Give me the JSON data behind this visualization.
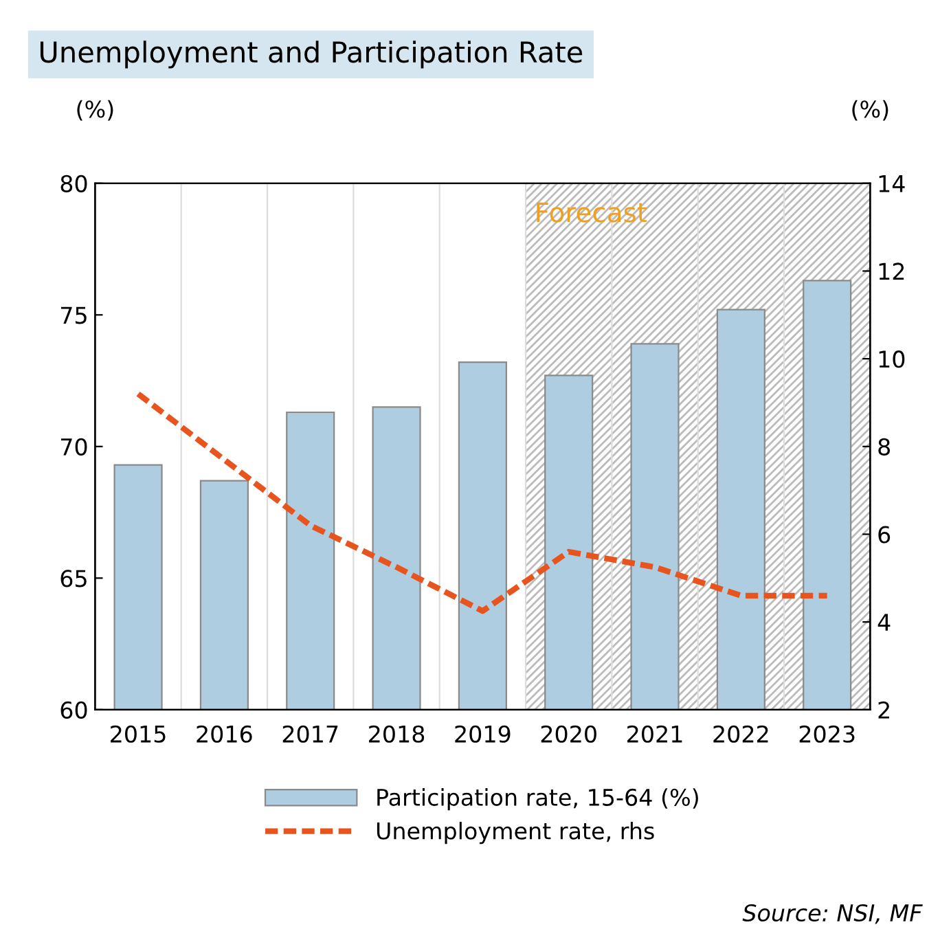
{
  "chart_data": {
    "type": "bar",
    "title": "Unemployment and Participation Rate",
    "ylabel": "(%)",
    "y2label": "(%)",
    "categories": [
      "2015",
      "2016",
      "2017",
      "2018",
      "2019",
      "2020",
      "2021",
      "2022",
      "2023"
    ],
    "series": [
      {
        "name": "Participation rate, 15-64 (%)",
        "color": "#afcde0",
        "values": [
          69.3,
          68.7,
          71.3,
          71.5,
          73.2,
          72.7,
          73.9,
          75.2,
          76.3
        ]
      },
      {
        "name": "Unemployment rate, rhs",
        "type": "line",
        "axis": "y2",
        "color": "#e8541e",
        "line_style": "dashed",
        "marker": "none",
        "values": [
          9.2,
          7.7,
          6.2,
          5.25,
          4.25,
          5.6,
          5.25,
          4.6,
          4.6
        ]
      }
    ],
    "ylim": [
      60,
      80
    ],
    "yticks": [
      60,
      65,
      70,
      75,
      80
    ],
    "y2lim": [
      2,
      14
    ],
    "y2ticks": [
      2,
      4,
      6,
      8,
      10,
      12,
      14
    ],
    "bands": [
      {
        "axis": "x",
        "from": "2020",
        "to": "2023",
        "label": "Forecast",
        "color": "#f0a020"
      }
    ],
    "grid": "x",
    "legend": "bottom",
    "annotations": [
      "Source: NSI, MF"
    ]
  }
}
